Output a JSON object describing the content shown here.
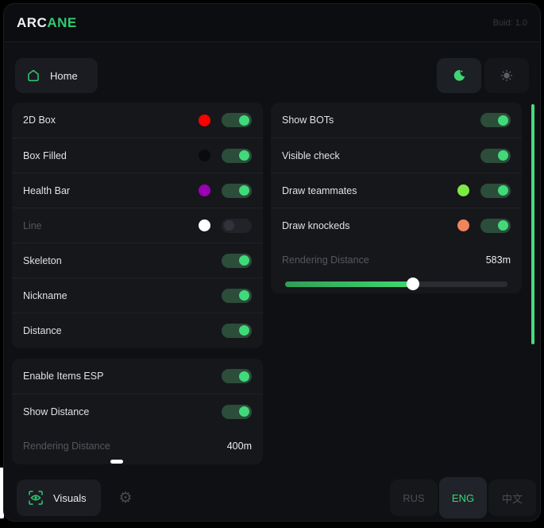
{
  "header": {
    "brand_prefix": "ARC",
    "brand_suffix": "ANE",
    "build_label": "Buid: 1.0"
  },
  "nav": {
    "home_label": "Home"
  },
  "colors": {
    "accent_green": "#2ecc71",
    "toggle_knob_on": "#41d97a",
    "scrollbar": "#4cd97b"
  },
  "panels": {
    "esp_player": {
      "rows": [
        {
          "label": "2D Box",
          "swatch": "#fe0000",
          "on": true,
          "disabled": false
        },
        {
          "label": "Box Filled",
          "swatch": "#0b0b0d",
          "on": true,
          "disabled": false
        },
        {
          "label": "Health Bar",
          "swatch": "#9a00b4",
          "on": true,
          "disabled": false
        },
        {
          "label": "Line",
          "swatch": "#ffffff",
          "on": false,
          "disabled": true
        },
        {
          "label": "Skeleton",
          "on": true,
          "disabled": false
        },
        {
          "label": "Nickname",
          "on": true,
          "disabled": false
        },
        {
          "label": "Distance",
          "on": true,
          "disabled": false
        }
      ]
    },
    "esp_items": {
      "rows": [
        {
          "label": "Enable Items ESP",
          "on": true,
          "disabled": false
        },
        {
          "label": "Show Distance",
          "on": true,
          "disabled": false
        }
      ],
      "slider": {
        "label": "Rendering Distance",
        "value": "400m"
      }
    },
    "bots": {
      "rows": [
        {
          "label": "Show BOTs",
          "on": true,
          "disabled": false
        },
        {
          "label": "Visible check",
          "on": true,
          "disabled": false
        },
        {
          "label": "Draw teammates",
          "swatch": "#7ceb42",
          "on": true,
          "disabled": false
        },
        {
          "label": "Draw knockeds",
          "swatch": "#f0845b",
          "on": true,
          "disabled": false
        }
      ],
      "slider": {
        "label": "Rendering Distance",
        "value": "583m",
        "percent": 57.5
      }
    }
  },
  "footer": {
    "visuals_label": "Visuals",
    "languages": [
      {
        "label": "RUS",
        "active": false
      },
      {
        "label": "ENG",
        "active": true
      },
      {
        "label": "中文",
        "active": false
      }
    ]
  }
}
